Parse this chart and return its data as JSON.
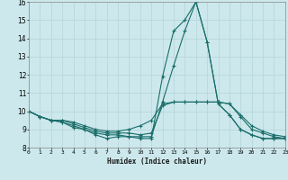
{
  "xlabel": "Humidex (Indice chaleur)",
  "xlim": [
    0,
    23
  ],
  "ylim": [
    8,
    16
  ],
  "yticks": [
    8,
    9,
    10,
    11,
    12,
    13,
    14,
    15,
    16
  ],
  "xticks": [
    0,
    1,
    2,
    3,
    4,
    5,
    6,
    7,
    8,
    9,
    10,
    11,
    12,
    13,
    14,
    15,
    16,
    17,
    18,
    19,
    20,
    21,
    22,
    23
  ],
  "bg_color": "#cce8ec",
  "line_color": "#1a6e6a",
  "grid_color": "#b8d8dc",
  "curves": [
    [
      10.0,
      9.7,
      9.5,
      9.4,
      9.1,
      9.0,
      8.7,
      8.5,
      8.6,
      8.6,
      8.5,
      8.5,
      11.9,
      14.4,
      15.0,
      16.0,
      13.8,
      10.4,
      9.8,
      9.0,
      8.7,
      8.5,
      8.5,
      8.5
    ],
    [
      10.0,
      9.7,
      9.5,
      9.5,
      9.4,
      9.2,
      9.0,
      8.9,
      8.9,
      9.0,
      9.2,
      9.5,
      10.4,
      10.5,
      10.5,
      10.5,
      10.5,
      10.5,
      10.4,
      9.8,
      9.2,
      8.9,
      8.7,
      8.6
    ],
    [
      10.0,
      9.7,
      9.5,
      9.5,
      9.3,
      9.1,
      8.9,
      8.8,
      8.8,
      8.8,
      8.7,
      8.8,
      10.3,
      10.5,
      10.5,
      10.5,
      10.5,
      10.5,
      10.4,
      9.7,
      9.0,
      8.8,
      8.6,
      8.5
    ],
    [
      10.0,
      9.7,
      9.5,
      9.4,
      9.2,
      9.0,
      8.8,
      8.7,
      8.7,
      8.6,
      8.6,
      8.6,
      10.5,
      12.5,
      14.4,
      16.0,
      13.8,
      10.4,
      9.8,
      9.0,
      8.7,
      8.5,
      8.5,
      8.5
    ]
  ]
}
